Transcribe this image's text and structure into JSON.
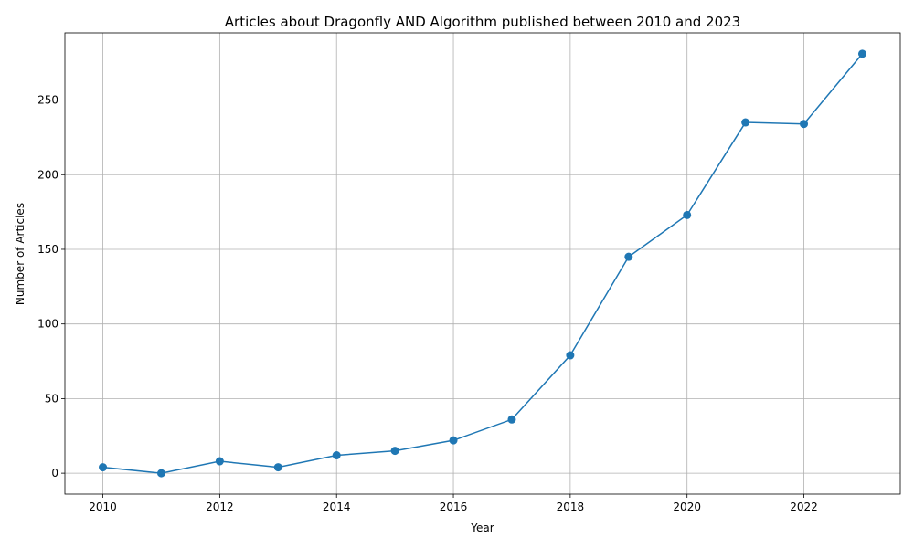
{
  "chart_data": {
    "type": "line",
    "title": "Articles about Dragonfly AND Algorithm published between 2010 and 2023",
    "xlabel": "Year",
    "ylabel": "Number of Articles",
    "x": [
      2010,
      2011,
      2012,
      2013,
      2014,
      2015,
      2016,
      2017,
      2018,
      2019,
      2020,
      2021,
      2022,
      2023
    ],
    "series": [
      {
        "values": [
          4,
          0,
          8,
          4,
          12,
          15,
          22,
          36,
          79,
          145,
          173,
          235,
          234,
          281
        ]
      }
    ],
    "xlim": [
      2009.35,
      2023.65
    ],
    "ylim": [
      -14,
      295
    ],
    "xticks": [
      "2010",
      "2012",
      "2014",
      "2016",
      "2018",
      "2020",
      "2022"
    ],
    "yticks": [
      "0",
      "50",
      "100",
      "150",
      "200",
      "250"
    ],
    "grid": true,
    "marker": "circle",
    "color": "#1f77b4"
  }
}
